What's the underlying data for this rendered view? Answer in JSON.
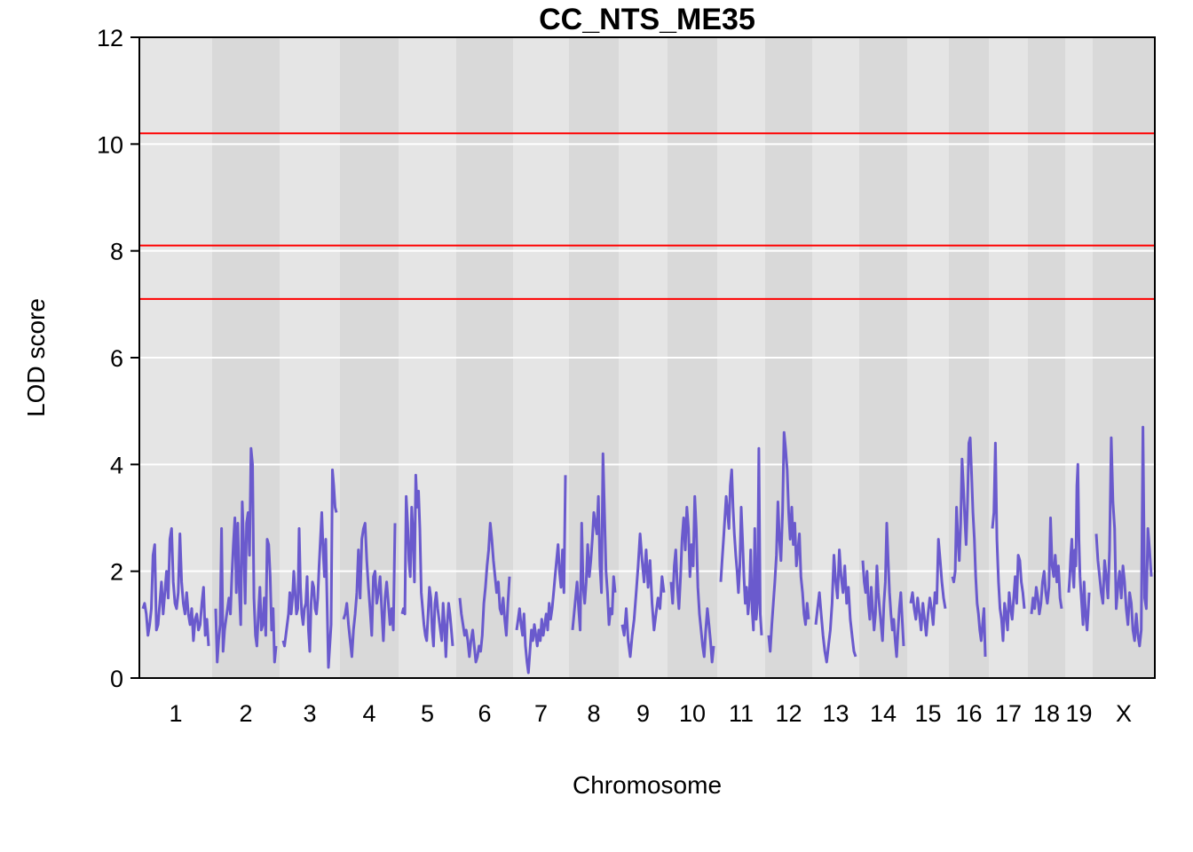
{
  "chart_data": {
    "type": "line",
    "title": "CC_NTS_ME35",
    "xlabel": "Chromosome",
    "ylabel": "LOD score",
    "ylim": [
      0,
      12
    ],
    "yticks": [
      0,
      2,
      4,
      6,
      8,
      10,
      12
    ],
    "grid": true,
    "chromosomes": [
      "1",
      "2",
      "3",
      "4",
      "5",
      "6",
      "7",
      "8",
      "9",
      "10",
      "11",
      "12",
      "13",
      "14",
      "15",
      "16",
      "17",
      "18",
      "19",
      "X"
    ],
    "thresholds": [
      10.2,
      8.1,
      7.1
    ],
    "series": [
      {
        "values": [
          [
            [
              1.3,
              1.4,
              1.2,
              0.8,
              1.0,
              1.3,
              2.3,
              2.5,
              0.9,
              1.0,
              1.4,
              1.8,
              1.2,
              1.6,
              2.0,
              1.5,
              2.6,
              2.8,
              1.8,
              1.4,
              1.3,
              1.6,
              2.7,
              1.8,
              1.4,
              1.2,
              1.6,
              1.2,
              1.0,
              1.3,
              0.7,
              1.1,
              1.2,
              0.9,
              1.0,
              1.4,
              1.7,
              0.8,
              1.1,
              0.6
            ]
          ],
          [
            [
              1.3,
              0.3,
              0.7,
              1.0,
              2.8,
              0.5,
              0.9,
              1.1,
              1.3,
              1.5,
              1.2,
              1.9,
              2.5,
              3.0,
              1.6,
              2.9,
              1.7,
              1.0,
              3.3,
              2.5,
              1.4,
              2.9,
              3.1,
              2.3,
              4.3,
              4.0,
              1.5,
              0.8,
              0.6,
              1.2,
              1.7,
              0.9,
              1.0,
              1.5,
              0.8,
              2.6,
              2.5,
              1.9,
              0.9,
              1.3,
              0.3,
              0.6
            ]
          ],
          [
            [
              0.7,
              0.6,
              0.8,
              1.0,
              1.2,
              1.6,
              1.2,
              1.5,
              2.0,
              1.6,
              1.2,
              1.3,
              2.8,
              1.7,
              1.2,
              1.0,
              1.3,
              1.4,
              1.9,
              0.9,
              0.5,
              1.4,
              1.8,
              1.7,
              1.3,
              1.2,
              1.5,
              2.1,
              2.6,
              3.1,
              2.4,
              1.9,
              2.6,
              1.4,
              0.2,
              0.6,
              1.0,
              3.9,
              3.6,
              3.2,
              3.1
            ]
          ],
          [
            [
              1.1,
              1.2,
              1.4,
              1.0,
              0.7,
              0.4,
              0.9,
              1.2,
              1.6,
              2.4,
              1.5,
              2.6,
              2.8,
              2.9,
              2.2,
              1.7,
              1.3,
              0.8,
              1.9,
              2.0,
              1.4,
              1.6,
              1.9,
              1.3,
              0.7,
              1.5,
              1.8,
              1.4,
              1.0,
              1.3,
              0.9,
              2.9
            ]
          ],
          [
            [
              1.2,
              1.3,
              1.2,
              3.4,
              2.9,
              2.2,
              1.9,
              3.2,
              2.7,
              1.8,
              3.8,
              3.2,
              3.5,
              2.8,
              1.6,
              1.3,
              1.0,
              0.8,
              0.7,
              1.2,
              1.7,
              1.5,
              0.9,
              0.6,
              1.4,
              1.6,
              1.3,
              1.1,
              0.9,
              0.7,
              1.4,
              1.0,
              0.4,
              1.0,
              1.4,
              1.2,
              0.9,
              0.6
            ]
          ],
          [
            [
              1.5,
              1.2,
              1.0,
              0.8,
              0.9,
              0.7,
              0.4,
              0.7,
              0.9,
              0.6,
              0.3,
              0.4,
              0.6,
              0.5,
              0.8,
              1.4,
              1.7,
              2.1,
              2.4,
              2.9,
              2.6,
              2.2,
              1.9,
              1.6,
              1.8,
              1.3,
              1.2,
              1.5,
              1.1,
              0.8,
              1.4,
              1.9
            ]
          ],
          [
            [
              0.9,
              1.1,
              1.3,
              1.0,
              0.8,
              1.2,
              0.6,
              0.3,
              0.1,
              0.5,
              0.9,
              0.7,
              1.0,
              0.8,
              0.6,
              0.9,
              0.7,
              1.1,
              0.8,
              1.0,
              1.2,
              0.9,
              1.4,
              1.1,
              1.3,
              1.6,
              1.9,
              2.2,
              2.5,
              2.0,
              1.7,
              2.4,
              1.6,
              3.8
            ]
          ],
          [
            [
              0.9,
              1.2,
              1.5,
              1.8,
              1.3,
              0.9,
              2.9,
              1.7,
              1.4,
              1.8,
              2.5,
              1.9,
              2.2,
              2.6,
              3.1,
              2.9,
              2.7,
              3.4,
              2.1,
              1.6,
              4.2,
              3.1,
              2.0,
              1.6,
              1.0,
              1.3,
              1.2,
              1.9,
              1.6
            ]
          ],
          [
            [
              1.0,
              0.8,
              1.3,
              0.7,
              0.4,
              0.8,
              1.1,
              1.6,
              2.1,
              2.7,
              2.2,
              1.8,
              2.4,
              1.7,
              2.2,
              1.4,
              0.9,
              1.2,
              1.5,
              1.3,
              1.9,
              1.6
            ]
          ],
          [
            [
              1.8,
              1.4,
              2.1,
              2.4,
              1.7,
              1.3,
              1.9,
              2.6,
              3.0,
              2.4,
              3.2,
              2.8,
              1.9,
              2.5,
              2.1,
              3.4,
              2.8,
              1.7,
              1.2,
              0.9,
              0.6,
              0.4,
              0.9,
              1.3,
              1.0,
              0.7,
              0.3,
              0.6
            ]
          ],
          [
            [
              1.8,
              2.2,
              2.6,
              3.0,
              3.4,
              3.1,
              2.8,
              3.6,
              3.9,
              3.2,
              2.7,
              2.3,
              2.0,
              1.6,
              2.1,
              3.2,
              2.6,
              1.9,
              1.4,
              1.7,
              1.2,
              1.5,
              2.4,
              1.3,
              0.9,
              2.8,
              1.1,
              1.4,
              4.3,
              1.2,
              0.8
            ]
          ],
          [
            [
              0.8,
              0.5,
              1.0,
              1.4,
              1.8,
              2.3,
              3.3,
              2.6,
              2.2,
              3.1,
              4.6,
              4.3,
              3.9,
              3.1,
              2.6,
              3.2,
              2.5,
              2.9,
              2.1,
              2.4,
              2.7,
              1.9,
              1.6,
              1.2,
              1.0,
              1.4,
              1.1
            ]
          ],
          [
            [
              1.0,
              1.3,
              1.6,
              1.2,
              0.8,
              0.5,
              0.3,
              0.6,
              0.9,
              1.4,
              2.3,
              1.8,
              1.5,
              2.4,
              1.9,
              1.6,
              2.1,
              1.4,
              1.7,
              1.1,
              0.8,
              0.5,
              0.4
            ]
          ],
          [
            [
              2.2,
              1.8,
              1.6,
              2.0,
              1.4,
              1.1,
              1.7,
              1.3,
              0.9,
              1.2,
              2.1,
              1.6,
              1.3,
              1.0,
              0.7,
              1.4,
              1.8,
              2.9,
              2.2,
              1.6,
              1.2,
              0.9,
              1.1,
              0.7,
              0.4,
              0.9,
              1.3,
              1.6,
              1.1,
              0.6
            ]
          ],
          [
            [
              1.4,
              1.6,
              1.3,
              1.1,
              1.5,
              1.2,
              0.9,
              1.4,
              1.1,
              0.8,
              1.2,
              1.5,
              1.3,
              1.0,
              1.6,
              1.4,
              2.6,
              2.2,
              1.8,
              1.5,
              1.3
            ]
          ],
          [
            [
              1.9,
              1.8,
              2.0,
              3.2,
              2.6,
              2.2,
              2.9,
              4.1,
              3.6,
              3.0,
              2.5,
              3.3,
              4.4,
              4.5,
              3.8,
              3.1,
              2.6,
              1.9,
              1.4,
              1.2,
              0.9,
              0.7,
              1.0,
              1.3,
              0.4
            ]
          ],
          [
            [
              2.8,
              3.1,
              4.4,
              2.6,
              1.8,
              1.3,
              1.1,
              0.7,
              1.4,
              1.2,
              0.9,
              1.6,
              1.3,
              1.1,
              1.5,
              1.9,
              1.4,
              2.3,
              2.2,
              1.8,
              1.6,
              1.3
            ]
          ],
          [
            [
              1.2,
              1.5,
              1.3,
              1.7,
              1.5,
              1.2,
              1.4,
              1.8,
              2.0,
              1.6,
              1.4,
              1.7,
              3.0,
              2.1,
              1.9,
              2.3,
              1.8,
              2.1,
              1.5,
              1.3
            ]
          ],
          [
            [
              1.6,
              1.9,
              2.3,
              2.6,
              2.0,
              1.7,
              2.4,
              2.1,
              3.6,
              4.0,
              2.6,
              1.9,
              1.6,
              1.3,
              1.0,
              1.8,
              1.4,
              1.1,
              0.9,
              1.2,
              1.6
            ]
          ],
          [
            [
              2.7,
              2.2,
              1.9,
              1.6,
              1.4,
              2.2,
              1.9,
              1.5,
              2.4,
              4.5,
              3.3,
              2.8,
              1.3,
              1.7,
              2.0,
              1.5,
              2.1,
              1.8,
              1.3,
              1.0,
              1.6,
              1.4,
              0.9,
              0.7,
              1.2,
              0.8,
              0.6,
              0.9,
              4.7,
              1.5,
              1.3,
              2.8,
              2.4,
              1.9
            ]
          ]
        ]
      }
    ],
    "colors": {
      "line": "#6A5ACD",
      "threshold": "#FF0000",
      "band_light": "#E5E5E5",
      "band_dark": "#D9D9D9",
      "grid": "#FFFFFF"
    }
  }
}
